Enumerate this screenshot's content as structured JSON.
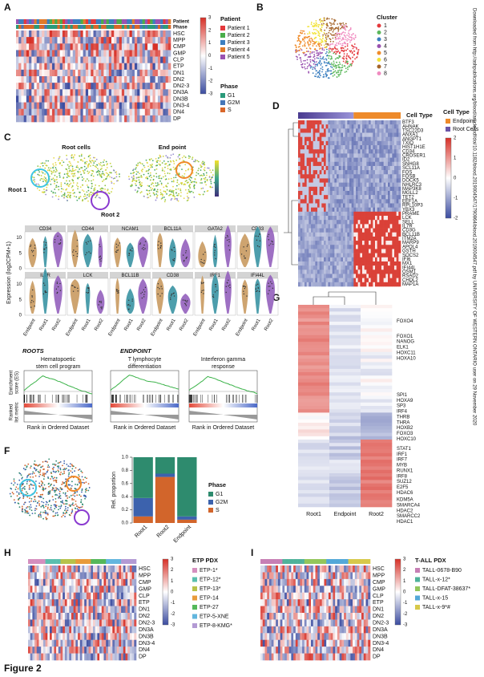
{
  "panel_a": {
    "label": "A",
    "patient_bar": "Patient",
    "phase_bar": "Phase",
    "rows": [
      "HSC",
      "MPP",
      "CMP",
      "GMP",
      "CLP",
      "ETP",
      "DN1",
      "DN2",
      "DN2-3",
      "DN3A",
      "DN3B",
      "DN3-4",
      "DN4",
      "DP"
    ],
    "colorbar_ticks": [
      3,
      2,
      1,
      0,
      -1,
      -2,
      -3
    ],
    "patient_legend": {
      "title": "Patient",
      "items": [
        {
          "name": "Patient 1",
          "color": "#e4393c"
        },
        {
          "name": "Patient 2",
          "color": "#4aae4a"
        },
        {
          "name": "Patient 3",
          "color": "#3b7fc0"
        },
        {
          "name": "Patient 4",
          "color": "#e07a2a"
        },
        {
          "name": "Patient 5",
          "color": "#9a52b0"
        }
      ]
    },
    "phase_legend": {
      "title": "Phase",
      "items": [
        {
          "name": "G1",
          "color": "#2a9a7a"
        },
        {
          "name": "G2M",
          "color": "#4577b8"
        },
        {
          "name": "S",
          "color": "#d9672a"
        }
      ]
    }
  },
  "panel_b": {
    "label": "B",
    "legend_title": "Cluster",
    "clusters": [
      {
        "name": "1",
        "color": "#e4393c"
      },
      {
        "name": "2",
        "color": "#5cb85c"
      },
      {
        "name": "3",
        "color": "#3b7fc0"
      },
      {
        "name": "4",
        "color": "#9a52b0"
      },
      {
        "name": "5",
        "color": "#f08c2a"
      },
      {
        "name": "6",
        "color": "#f2e33a"
      },
      {
        "name": "7",
        "color": "#a5652a"
      },
      {
        "name": "8",
        "color": "#f08bc0"
      }
    ]
  },
  "panel_c": {
    "label": "C",
    "umap_titles": [
      "Root cells",
      "End point"
    ],
    "root1": "Root 1",
    "root2": "Root 2",
    "violin_genes": [
      [
        "CD34",
        "CD44",
        "NCAM1",
        "BCL11A",
        "GATA2",
        "CD33"
      ],
      [
        "IL7R",
        "LCK",
        "BCL11B",
        "CD38",
        "IRF1",
        "IFI44L"
      ]
    ],
    "violin_groups": [
      {
        "name": "Endpoint",
        "color": "#c99a60"
      },
      {
        "name": "Root1",
        "color": "#3a93a3"
      },
      {
        "name": "Root2",
        "color": "#9461bd"
      }
    ],
    "violin_ylabel": "Expression (log2CPM+1)",
    "violin_yticks": [
      0,
      5,
      10
    ],
    "gsea_groups": [
      "ROOTS",
      "ENDPOINT"
    ],
    "gsea_titles": [
      [
        "Hematopoetic",
        "stem cell program"
      ],
      [
        "T lymphocyte",
        "differentiation"
      ],
      [
        "Interferon gamma",
        "response"
      ]
    ],
    "gsea_es_label": [
      "Enrichment",
      "score (ES)"
    ],
    "gsea_rank_label": [
      "Ranked",
      "list metric"
    ],
    "gsea_xlabel": "Rank in Ordered Dataset"
  },
  "panel_d": {
    "label": "D",
    "bar_label": "Cell Type",
    "legend_title": "Cell Type",
    "legend": [
      {
        "name": "Endpoint",
        "color": "#ee8a2a"
      },
      {
        "name": "Root Cells",
        "color": "#6a55a8"
      }
    ],
    "colorbar_ticks": [
      2,
      1,
      0,
      -1,
      -2
    ],
    "genes": [
      "BTF3",
      "AHNAK",
      "TSC22D3",
      "ANXA1",
      "ANGPT1",
      "TXIO",
      "HIST1H1E",
      "CD34",
      "CROSER1",
      "ID2",
      "SNHG8",
      "SCL11A",
      "FOS",
      "FOSB",
      "DOCK5",
      "NHLRC3",
      "MAP3K8",
      "MGLL2",
      "TET2",
      "EEF1A",
      "RPL10P3",
      "YBX3",
      "PRAME",
      "LCK",
      "SELL",
      "IL7R",
      "CD3G",
      "BCL11B",
      "ITM2A",
      "MARP9",
      "APOL4",
      "GSTH",
      "SOCS2",
      "IFI6",
      "MX1",
      "IFI44L",
      "OSM1",
      "RSAD2",
      "CHDL2",
      "MAP1A"
    ]
  },
  "panel_g": {
    "label": "G",
    "columns": [
      "Root1",
      "Endpoint",
      "Root2"
    ],
    "genes": [
      "FOXO4",
      "FOXO1",
      "NANOG",
      "ELK1",
      "HOXC11",
      "HOXA10",
      "SPI1",
      "HOXA9",
      "SP3",
      "IRF4",
      "THRB",
      "THRA",
      "HOXB2",
      "FOXO3",
      "HOXC10",
      "STAT1",
      "IRF1",
      "IRF7",
      "MYB",
      "RUNX1",
      "IRF8",
      "SUZ12",
      "E2F5",
      "HDAC6",
      "KDM5A",
      "SMARCA4",
      "HDAC2",
      "SMARCC2",
      "HDAC1"
    ]
  },
  "panel_f": {
    "label": "F",
    "y_label": "Rel. proportion",
    "legend_title": "Phase",
    "categories": [
      "Root1",
      "Root2",
      "Endpoint"
    ],
    "series": [
      {
        "name": "S",
        "color": "#d2652b",
        "values": [
          0.1,
          0.7,
          0.05
        ]
      },
      {
        "name": "G2M",
        "color": "#3c62ad",
        "values": [
          0.28,
          0.05,
          0.05
        ]
      },
      {
        "name": "G1",
        "color": "#2e8b6e",
        "values": [
          0.62,
          0.25,
          0.9
        ]
      }
    ],
    "ylim": [
      0,
      1
    ],
    "yticks": [
      {
        "value": 0,
        "label": "0.0"
      },
      {
        "value": 0.2,
        "label": "0.2"
      },
      {
        "value": 0.4,
        "label": "0.4"
      },
      {
        "value": 0.6,
        "label": "0.6"
      },
      {
        "value": 0.8,
        "label": "0.8"
      },
      {
        "value": 1,
        "label": "1.0"
      }
    ]
  },
  "panel_h": {
    "label": "H",
    "legend_title": "ETP PDX",
    "rows": [
      "HSC",
      "MPP",
      "CMP",
      "GMP",
      "CLP",
      "ETP",
      "DN1",
      "DN2",
      "DN2-3",
      "DN3A",
      "DN3B",
      "DN3-4",
      "DN4",
      "DP"
    ],
    "colorbar_ticks": [
      3,
      2,
      1,
      0,
      -1,
      -2,
      -3
    ],
    "samples": [
      {
        "name": "ETP-1*",
        "color": "#d58fbf"
      },
      {
        "name": "ETP-12*",
        "color": "#5bbfae"
      },
      {
        "name": "ETP-13*",
        "color": "#b7c24a"
      },
      {
        "name": "ETP-14",
        "color": "#e89b3a"
      },
      {
        "name": "ETP-27",
        "color": "#55b85a"
      },
      {
        "name": "ETP-5-XNE",
        "color": "#62b6de"
      },
      {
        "name": "ETP-8-KMG*",
        "color": "#b39ad4"
      }
    ]
  },
  "panel_i": {
    "label": "I",
    "legend_title": "T-ALL PDX",
    "rows": [
      "HSC",
      "MPP",
      "CMP",
      "GMP",
      "CLP",
      "ETP",
      "DN1",
      "DN2",
      "DN2-3",
      "DN3A",
      "DN3B",
      "DN3-4",
      "DN4",
      "DP"
    ],
    "colorbar_ticks": [
      3,
      2,
      1,
      0,
      -1,
      -2,
      -3
    ],
    "samples": [
      {
        "name": "TALL-0678-B90",
        "color": "#c77fb5"
      },
      {
        "name": "TALL-x-12*",
        "color": "#4fb29a"
      },
      {
        "name": "TALL-DFAT-38637*",
        "color": "#93c65b"
      },
      {
        "name": "TALL-x-15",
        "color": "#53a8d8"
      },
      {
        "name": "TALL-x-9*#",
        "color": "#d7c94a"
      }
    ]
  },
  "figure_label": "Figure 2",
  "watermark": "Downloaded from http://ashpublications.org/blood/article-pdf/doi/10.1182/blood.2019004547/1790864/blood.2019004547.pdf by UNIVERSITY OF WESTERN ONTARIO user on 29 November 2020"
}
